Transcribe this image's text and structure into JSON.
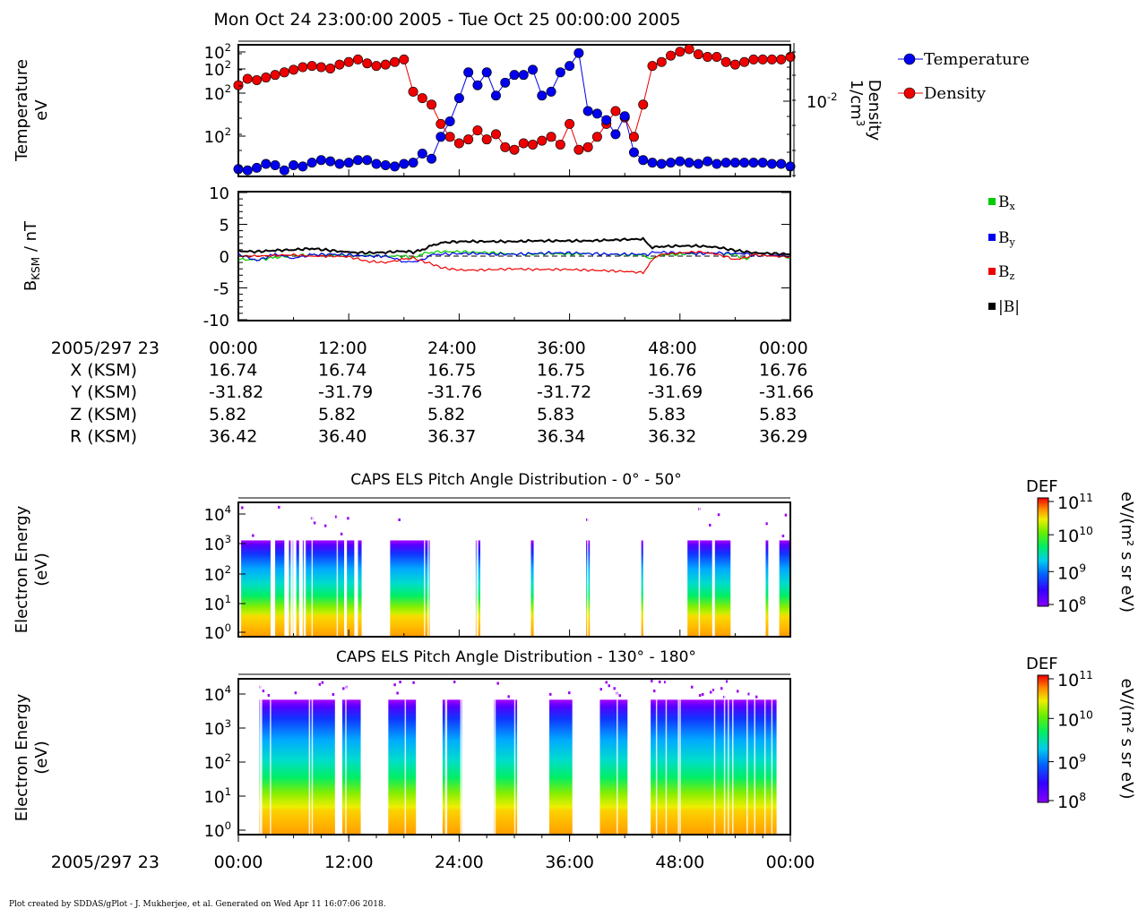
{
  "header": {
    "title": "Mon Oct 24 23:00:00 2005 - Tue Oct 25 00:00:00 2005"
  },
  "footer": {
    "text": "Plot created by SDDAS/gPlot - J. Mukherjee, et al.  Generated on Wed Apr 11 16:07:06 2018."
  },
  "colors": {
    "temperature": "#0000ee",
    "density": "#ee0000",
    "bx": "#00cc00",
    "by": "#0000ee",
    "bz": "#ee0000",
    "btot": "#000000"
  },
  "chart_data": [
    {
      "type": "scatter",
      "name": "plasma-moments",
      "ylabel_left": [
        "Temperature",
        "eV"
      ],
      "ylabel_right": [
        "Density",
        "1/cm",
        "3"
      ],
      "left_ticks": [
        {
          "m": "10",
          "e": "2"
        },
        {
          "m": "10",
          "e": "2"
        },
        {
          "m": "10",
          "e": "2"
        },
        {
          "m": "10",
          "e": "2"
        }
      ],
      "right_ticks": [
        {
          "m": "10",
          "e": "-2"
        }
      ],
      "legend": [
        {
          "label": "Temperature"
        },
        {
          "label": "Density"
        }
      ],
      "x_minutes": [
        0,
        1,
        2,
        3,
        4,
        5,
        6,
        7,
        8,
        9,
        10,
        11,
        12,
        13,
        14,
        15,
        16,
        17,
        18,
        19,
        20,
        21,
        22,
        23,
        24,
        25,
        26,
        27,
        28,
        29,
        30,
        31,
        32,
        33,
        34,
        35,
        36,
        37,
        38,
        39,
        40,
        41,
        42,
        43,
        44,
        45,
        46,
        47,
        48,
        49,
        50,
        51,
        52,
        53,
        54,
        55,
        56,
        57,
        58,
        59,
        60
      ],
      "temperature_rel": [
        0.05,
        0.04,
        0.06,
        0.09,
        0.08,
        0.04,
        0.08,
        0.07,
        0.1,
        0.12,
        0.11,
        0.09,
        0.1,
        0.12,
        0.12,
        0.09,
        0.08,
        0.07,
        0.09,
        0.1,
        0.17,
        0.13,
        0.3,
        0.42,
        0.6,
        0.8,
        0.7,
        0.8,
        0.62,
        0.72,
        0.78,
        0.78,
        0.82,
        0.62,
        0.65,
        0.8,
        0.85,
        0.95,
        0.5,
        0.48,
        0.43,
        0.32,
        0.46,
        0.18,
        0.12,
        0.1,
        0.09,
        0.1,
        0.11,
        0.1,
        0.09,
        0.11,
        0.09,
        0.1,
        0.1,
        0.1,
        0.1,
        0.1,
        0.09,
        0.09,
        0.07
      ],
      "density_rel": [
        0.7,
        0.75,
        0.74,
        0.76,
        0.78,
        0.8,
        0.82,
        0.84,
        0.85,
        0.84,
        0.83,
        0.86,
        0.88,
        0.9,
        0.87,
        0.85,
        0.86,
        0.88,
        0.9,
        0.65,
        0.6,
        0.55,
        0.4,
        0.3,
        0.25,
        0.28,
        0.35,
        0.28,
        0.32,
        0.22,
        0.2,
        0.25,
        0.24,
        0.27,
        0.3,
        0.24,
        0.4,
        0.2,
        0.22,
        0.3,
        0.4,
        0.5,
        0.45,
        0.3,
        0.55,
        0.85,
        0.88,
        0.93,
        0.96,
        0.98,
        0.94,
        0.92,
        0.92,
        0.88,
        0.86,
        0.88,
        0.9,
        0.9,
        0.9,
        0.9,
        0.92
      ]
    },
    {
      "type": "line",
      "name": "magnetic-field",
      "ylabel": "B_KSM / nT",
      "ylabel_parts": {
        "main": "B",
        "sub": "KSM",
        "rest": " / nT"
      },
      "ylim": [
        -10,
        10
      ],
      "yticks": [
        -10,
        -5,
        0,
        5,
        10
      ],
      "legend": [
        {
          "label": "B",
          "sub": "x"
        },
        {
          "label": "B",
          "sub": "y"
        },
        {
          "label": "B",
          "sub": "z"
        },
        {
          "label": "|B|",
          "sub": ""
        }
      ],
      "x_minutes": [
        0,
        2,
        4,
        6,
        8,
        10,
        12,
        14,
        16,
        18,
        19,
        20,
        21,
        22,
        24,
        26,
        28,
        30,
        32,
        34,
        36,
        38,
        40,
        42,
        44,
        44.5,
        45,
        46,
        48,
        50,
        52,
        54,
        55,
        56,
        58,
        60
      ],
      "bx": [
        -0.5,
        -0.6,
        -0.2,
        0.1,
        0.2,
        0.2,
        0.1,
        0.1,
        0.0,
        0.0,
        -0.3,
        0.4,
        0.6,
        0.7,
        0.7,
        0.6,
        0.5,
        0.3,
        0.3,
        0.4,
        0.3,
        0.4,
        0.3,
        0.2,
        0.2,
        -0.5,
        -0.3,
        0.2,
        0.3,
        0.4,
        0.5,
        0.2,
        -0.5,
        0.1,
        0.1,
        -0.2
      ],
      "by": [
        0.3,
        -0.7,
        0.3,
        -0.3,
        0.2,
        0.3,
        0.2,
        0.0,
        0.0,
        -0.8,
        -0.9,
        -0.6,
        0.2,
        0.3,
        0.4,
        0.4,
        0.3,
        0.3,
        0.4,
        0.5,
        0.5,
        0.4,
        0.3,
        0.3,
        0.3,
        0.2,
        0.6,
        0.6,
        0.5,
        0.4,
        0.5,
        0.4,
        0.4,
        0.1,
        0.1,
        0.0
      ],
      "bz": [
        0.0,
        0.0,
        0.1,
        0.2,
        0.0,
        0.0,
        -0.1,
        -0.8,
        -1.0,
        -0.5,
        -0.3,
        -0.8,
        -1.2,
        -1.8,
        -2.2,
        -2.2,
        -2.1,
        -2.0,
        -2.1,
        -2.1,
        -2.1,
        -2.2,
        -2.3,
        -2.4,
        -2.6,
        -1.5,
        -0.5,
        0.3,
        0.5,
        0.7,
        0.3,
        -0.5,
        -0.3,
        0.2,
        0.0,
        -0.1
      ],
      "btot": [
        0.8,
        0.7,
        0.9,
        1.0,
        1.2,
        0.9,
        0.6,
        0.5,
        0.6,
        0.8,
        0.6,
        1.0,
        1.6,
        2.1,
        2.3,
        2.3,
        2.3,
        2.3,
        2.4,
        2.4,
        2.4,
        2.4,
        2.5,
        2.6,
        2.7,
        1.8,
        1.4,
        1.5,
        1.6,
        1.6,
        1.4,
        0.9,
        0.7,
        0.5,
        0.4,
        0.3
      ]
    },
    {
      "type": "table",
      "name": "ephemeris",
      "rows": [
        {
          "label": "2005/297 23",
          "values": [
            "00:00",
            "12:00",
            "24:00",
            "36:00",
            "48:00",
            "00:00"
          ]
        },
        {
          "label": "X (KSM)",
          "values": [
            "16.74",
            "16.74",
            "16.75",
            "16.75",
            "16.76",
            "16.76"
          ]
        },
        {
          "label": "Y (KSM)",
          "values": [
            "-31.82",
            "-31.79",
            "-31.76",
            "-31.72",
            "-31.69",
            "-31.66"
          ]
        },
        {
          "label": "Z (KSM)",
          "values": [
            "5.82",
            "5.82",
            "5.82",
            "5.83",
            "5.83",
            "5.83"
          ]
        },
        {
          "label": "R (KSM)",
          "values": [
            "36.42",
            "36.40",
            "36.37",
            "36.34",
            "36.32",
            "36.29"
          ]
        }
      ]
    },
    {
      "type": "heatmap",
      "name": "els-pad-0-50",
      "title": "CAPS ELS Pitch Angle Distribution - 0° - 50°",
      "ylabel": [
        "Electron Energy",
        "(eV)"
      ],
      "yticks": [
        {
          "m": "10",
          "e": "4"
        },
        {
          "m": "10",
          "e": "3"
        },
        {
          "m": "10",
          "e": "2"
        },
        {
          "m": "10",
          "e": "1"
        },
        {
          "m": "10",
          "e": "0"
        }
      ],
      "colorbar": {
        "label": "DEF",
        "units": "eV/(m² s sr eV)",
        "ticks": [
          {
            "m": "10",
            "e": "11"
          },
          {
            "m": "10",
            "e": "10"
          },
          {
            "m": "10",
            "e": "9"
          },
          {
            "m": "10",
            "e": "8"
          }
        ]
      },
      "active_intervals_min": [
        [
          0.3,
          3.5
        ],
        [
          4,
          5
        ],
        [
          5.5,
          6
        ],
        [
          6.3,
          6.6
        ],
        [
          7,
          11.5
        ],
        [
          11.8,
          12.6
        ],
        [
          13,
          13.4
        ],
        [
          16.5,
          20.8
        ],
        [
          25.8,
          26.3
        ],
        [
          31.8,
          32.1
        ],
        [
          37.8,
          38.2
        ],
        [
          43.8,
          44.0
        ],
        [
          48.8,
          51.5
        ],
        [
          51.8,
          53.5
        ],
        [
          57.3,
          57.6
        ],
        [
          58.8,
          60
        ]
      ]
    },
    {
      "type": "heatmap",
      "name": "els-pad-130-180",
      "title": "CAPS ELS Pitch Angle Distribution - 130° - 180°",
      "ylabel": [
        "Electron Energy",
        "(eV)"
      ],
      "xlabel_left": "2005/297 23",
      "xticks": [
        "00:00",
        "12:00",
        "24:00",
        "36:00",
        "48:00",
        "00:00"
      ],
      "yticks": [
        {
          "m": "10",
          "e": "4"
        },
        {
          "m": "10",
          "e": "3"
        },
        {
          "m": "10",
          "e": "2"
        },
        {
          "m": "10",
          "e": "1"
        },
        {
          "m": "10",
          "e": "0"
        }
      ],
      "colorbar": {
        "label": "DEF",
        "units": "eV/(m² s sr eV)",
        "ticks": [
          {
            "m": "10",
            "e": "11"
          },
          {
            "m": "10",
            "e": "10"
          },
          {
            "m": "10",
            "e": "9"
          },
          {
            "m": "10",
            "e": "8"
          }
        ]
      },
      "active_intervals_min": [
        [
          2.3,
          10.5
        ],
        [
          11.3,
          13.3
        ],
        [
          16.3,
          19.3
        ],
        [
          22.2,
          24.3
        ],
        [
          27.8,
          30.3
        ],
        [
          33.8,
          36.3
        ],
        [
          39.3,
          42.3
        ],
        [
          44.8,
          58.5
        ]
      ]
    }
  ]
}
